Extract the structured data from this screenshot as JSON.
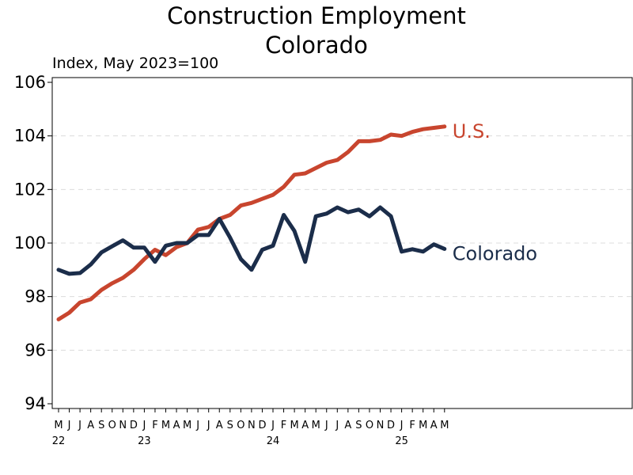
{
  "chart_data": {
    "type": "line",
    "title": "Construction Employment",
    "subtitle": "Colorado",
    "ylabel": "Index, May 2023=100",
    "ylim": [
      94,
      106
    ],
    "yticks": [
      94,
      96,
      98,
      100,
      102,
      104,
      106
    ],
    "month_labels": [
      "M",
      "J",
      "J",
      "A",
      "S",
      "O",
      "N",
      "D",
      "J",
      "F",
      "M",
      "A",
      "M",
      "J",
      "J",
      "A",
      "S",
      "O",
      "N",
      "D",
      "J",
      "F",
      "M",
      "A",
      "M",
      "J",
      "J",
      "A",
      "S",
      "O",
      "N",
      "D",
      "J",
      "F",
      "M",
      "A",
      "M"
    ],
    "year_labels": [
      {
        "label": "22",
        "index": 0
      },
      {
        "label": "23",
        "index": 8
      },
      {
        "label": "24",
        "index": 20
      },
      {
        "label": "25",
        "index": 32
      }
    ],
    "grid": "horizontal dashed",
    "series": [
      {
        "name": "U.S.",
        "color": "#c8452e",
        "values": [
          97.15,
          97.4,
          97.78,
          97.9,
          98.25,
          98.5,
          98.7,
          99.0,
          99.4,
          99.75,
          99.55,
          99.85,
          100.0,
          100.5,
          100.6,
          100.9,
          101.05,
          101.4,
          101.5,
          101.65,
          101.8,
          102.1,
          102.55,
          102.6,
          102.8,
          103.0,
          103.1,
          103.4,
          103.8,
          103.8,
          103.85,
          104.05,
          104.0,
          104.15,
          104.25,
          104.3,
          104.35
        ]
      },
      {
        "name": "Colorado",
        "color": "#1b2d4a",
        "values": [
          99.0,
          98.85,
          98.88,
          99.2,
          99.65,
          99.88,
          100.1,
          99.83,
          99.83,
          99.3,
          99.9,
          100.0,
          100.0,
          100.3,
          100.3,
          100.9,
          100.2,
          99.4,
          99.0,
          99.75,
          99.9,
          101.05,
          100.45,
          99.3,
          101.0,
          101.1,
          101.33,
          101.15,
          101.25,
          101.0,
          101.33,
          101.0,
          99.68,
          99.77,
          99.68,
          99.95,
          99.78
        ]
      }
    ]
  }
}
